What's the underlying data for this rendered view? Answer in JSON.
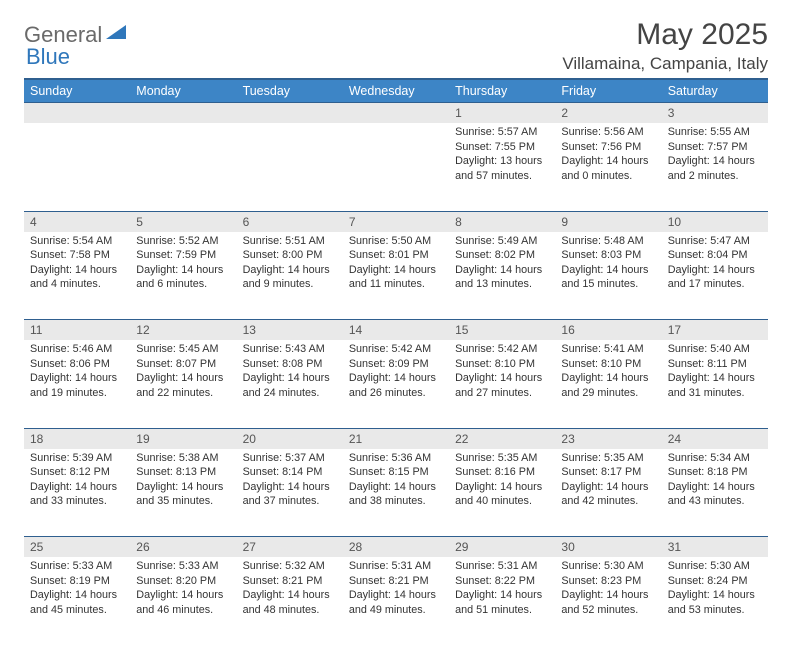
{
  "brand": {
    "part1": "General",
    "part2": "Blue"
  },
  "title": "May 2025",
  "location": "Villamaina, Campania, Italy",
  "colors": {
    "header_bg": "#3d85c6",
    "header_border": "#2f5f8f",
    "daynum_bg": "#e9e9e9",
    "text": "#333333",
    "brand_gray": "#6a6a6a",
    "brand_blue": "#2f77bb"
  },
  "day_names": [
    "Sunday",
    "Monday",
    "Tuesday",
    "Wednesday",
    "Thursday",
    "Friday",
    "Saturday"
  ],
  "weeks": [
    [
      null,
      null,
      null,
      null,
      {
        "n": "1",
        "sr": "5:57 AM",
        "ss": "7:55 PM",
        "dl": "13 hours and 57 minutes."
      },
      {
        "n": "2",
        "sr": "5:56 AM",
        "ss": "7:56 PM",
        "dl": "14 hours and 0 minutes."
      },
      {
        "n": "3",
        "sr": "5:55 AM",
        "ss": "7:57 PM",
        "dl": "14 hours and 2 minutes."
      }
    ],
    [
      {
        "n": "4",
        "sr": "5:54 AM",
        "ss": "7:58 PM",
        "dl": "14 hours and 4 minutes."
      },
      {
        "n": "5",
        "sr": "5:52 AM",
        "ss": "7:59 PM",
        "dl": "14 hours and 6 minutes."
      },
      {
        "n": "6",
        "sr": "5:51 AM",
        "ss": "8:00 PM",
        "dl": "14 hours and 9 minutes."
      },
      {
        "n": "7",
        "sr": "5:50 AM",
        "ss": "8:01 PM",
        "dl": "14 hours and 11 minutes."
      },
      {
        "n": "8",
        "sr": "5:49 AM",
        "ss": "8:02 PM",
        "dl": "14 hours and 13 minutes."
      },
      {
        "n": "9",
        "sr": "5:48 AM",
        "ss": "8:03 PM",
        "dl": "14 hours and 15 minutes."
      },
      {
        "n": "10",
        "sr": "5:47 AM",
        "ss": "8:04 PM",
        "dl": "14 hours and 17 minutes."
      }
    ],
    [
      {
        "n": "11",
        "sr": "5:46 AM",
        "ss": "8:06 PM",
        "dl": "14 hours and 19 minutes."
      },
      {
        "n": "12",
        "sr": "5:45 AM",
        "ss": "8:07 PM",
        "dl": "14 hours and 22 minutes."
      },
      {
        "n": "13",
        "sr": "5:43 AM",
        "ss": "8:08 PM",
        "dl": "14 hours and 24 minutes."
      },
      {
        "n": "14",
        "sr": "5:42 AM",
        "ss": "8:09 PM",
        "dl": "14 hours and 26 minutes."
      },
      {
        "n": "15",
        "sr": "5:42 AM",
        "ss": "8:10 PM",
        "dl": "14 hours and 27 minutes."
      },
      {
        "n": "16",
        "sr": "5:41 AM",
        "ss": "8:10 PM",
        "dl": "14 hours and 29 minutes."
      },
      {
        "n": "17",
        "sr": "5:40 AM",
        "ss": "8:11 PM",
        "dl": "14 hours and 31 minutes."
      }
    ],
    [
      {
        "n": "18",
        "sr": "5:39 AM",
        "ss": "8:12 PM",
        "dl": "14 hours and 33 minutes."
      },
      {
        "n": "19",
        "sr": "5:38 AM",
        "ss": "8:13 PM",
        "dl": "14 hours and 35 minutes."
      },
      {
        "n": "20",
        "sr": "5:37 AM",
        "ss": "8:14 PM",
        "dl": "14 hours and 37 minutes."
      },
      {
        "n": "21",
        "sr": "5:36 AM",
        "ss": "8:15 PM",
        "dl": "14 hours and 38 minutes."
      },
      {
        "n": "22",
        "sr": "5:35 AM",
        "ss": "8:16 PM",
        "dl": "14 hours and 40 minutes."
      },
      {
        "n": "23",
        "sr": "5:35 AM",
        "ss": "8:17 PM",
        "dl": "14 hours and 42 minutes."
      },
      {
        "n": "24",
        "sr": "5:34 AM",
        "ss": "8:18 PM",
        "dl": "14 hours and 43 minutes."
      }
    ],
    [
      {
        "n": "25",
        "sr": "5:33 AM",
        "ss": "8:19 PM",
        "dl": "14 hours and 45 minutes."
      },
      {
        "n": "26",
        "sr": "5:33 AM",
        "ss": "8:20 PM",
        "dl": "14 hours and 46 minutes."
      },
      {
        "n": "27",
        "sr": "5:32 AM",
        "ss": "8:21 PM",
        "dl": "14 hours and 48 minutes."
      },
      {
        "n": "28",
        "sr": "5:31 AM",
        "ss": "8:21 PM",
        "dl": "14 hours and 49 minutes."
      },
      {
        "n": "29",
        "sr": "5:31 AM",
        "ss": "8:22 PM",
        "dl": "14 hours and 51 minutes."
      },
      {
        "n": "30",
        "sr": "5:30 AM",
        "ss": "8:23 PM",
        "dl": "14 hours and 52 minutes."
      },
      {
        "n": "31",
        "sr": "5:30 AM",
        "ss": "8:24 PM",
        "dl": "14 hours and 53 minutes."
      }
    ]
  ],
  "labels": {
    "sunrise": "Sunrise: ",
    "sunset": "Sunset: ",
    "daylight": "Daylight: "
  }
}
